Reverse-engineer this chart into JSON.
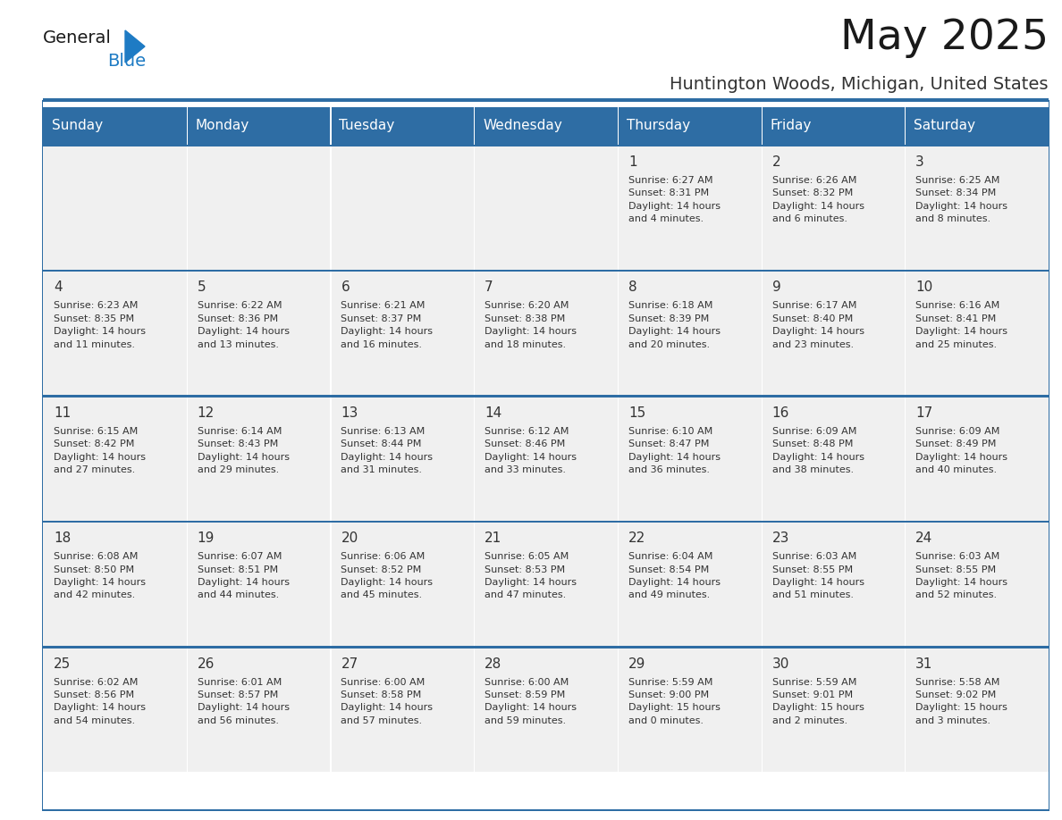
{
  "title": "May 2025",
  "subtitle": "Huntington Woods, Michigan, United States",
  "days_of_week": [
    "Sunday",
    "Monday",
    "Tuesday",
    "Wednesday",
    "Thursday",
    "Friday",
    "Saturday"
  ],
  "header_bg": "#2E6DA4",
  "header_text": "#FFFFFF",
  "cell_bg": "#F0F0F0",
  "cell_text": "#333333",
  "grid_line_color": "#2E6DA4",
  "title_color": "#1A1A1A",
  "subtitle_color": "#333333",
  "logo_general_color": "#1A1A1A",
  "logo_blue_color": "#1E7BC4",
  "fig_width": 11.88,
  "fig_height": 9.18,
  "weeks": [
    {
      "days": [
        {
          "day": null,
          "info": null
        },
        {
          "day": null,
          "info": null
        },
        {
          "day": null,
          "info": null
        },
        {
          "day": null,
          "info": null
        },
        {
          "day": 1,
          "info": "Sunrise: 6:27 AM\nSunset: 8:31 PM\nDaylight: 14 hours\nand 4 minutes."
        },
        {
          "day": 2,
          "info": "Sunrise: 6:26 AM\nSunset: 8:32 PM\nDaylight: 14 hours\nand 6 minutes."
        },
        {
          "day": 3,
          "info": "Sunrise: 6:25 AM\nSunset: 8:34 PM\nDaylight: 14 hours\nand 8 minutes."
        }
      ]
    },
    {
      "days": [
        {
          "day": 4,
          "info": "Sunrise: 6:23 AM\nSunset: 8:35 PM\nDaylight: 14 hours\nand 11 minutes."
        },
        {
          "day": 5,
          "info": "Sunrise: 6:22 AM\nSunset: 8:36 PM\nDaylight: 14 hours\nand 13 minutes."
        },
        {
          "day": 6,
          "info": "Sunrise: 6:21 AM\nSunset: 8:37 PM\nDaylight: 14 hours\nand 16 minutes."
        },
        {
          "day": 7,
          "info": "Sunrise: 6:20 AM\nSunset: 8:38 PM\nDaylight: 14 hours\nand 18 minutes."
        },
        {
          "day": 8,
          "info": "Sunrise: 6:18 AM\nSunset: 8:39 PM\nDaylight: 14 hours\nand 20 minutes."
        },
        {
          "day": 9,
          "info": "Sunrise: 6:17 AM\nSunset: 8:40 PM\nDaylight: 14 hours\nand 23 minutes."
        },
        {
          "day": 10,
          "info": "Sunrise: 6:16 AM\nSunset: 8:41 PM\nDaylight: 14 hours\nand 25 minutes."
        }
      ]
    },
    {
      "days": [
        {
          "day": 11,
          "info": "Sunrise: 6:15 AM\nSunset: 8:42 PM\nDaylight: 14 hours\nand 27 minutes."
        },
        {
          "day": 12,
          "info": "Sunrise: 6:14 AM\nSunset: 8:43 PM\nDaylight: 14 hours\nand 29 minutes."
        },
        {
          "day": 13,
          "info": "Sunrise: 6:13 AM\nSunset: 8:44 PM\nDaylight: 14 hours\nand 31 minutes."
        },
        {
          "day": 14,
          "info": "Sunrise: 6:12 AM\nSunset: 8:46 PM\nDaylight: 14 hours\nand 33 minutes."
        },
        {
          "day": 15,
          "info": "Sunrise: 6:10 AM\nSunset: 8:47 PM\nDaylight: 14 hours\nand 36 minutes."
        },
        {
          "day": 16,
          "info": "Sunrise: 6:09 AM\nSunset: 8:48 PM\nDaylight: 14 hours\nand 38 minutes."
        },
        {
          "day": 17,
          "info": "Sunrise: 6:09 AM\nSunset: 8:49 PM\nDaylight: 14 hours\nand 40 minutes."
        }
      ]
    },
    {
      "days": [
        {
          "day": 18,
          "info": "Sunrise: 6:08 AM\nSunset: 8:50 PM\nDaylight: 14 hours\nand 42 minutes."
        },
        {
          "day": 19,
          "info": "Sunrise: 6:07 AM\nSunset: 8:51 PM\nDaylight: 14 hours\nand 44 minutes."
        },
        {
          "day": 20,
          "info": "Sunrise: 6:06 AM\nSunset: 8:52 PM\nDaylight: 14 hours\nand 45 minutes."
        },
        {
          "day": 21,
          "info": "Sunrise: 6:05 AM\nSunset: 8:53 PM\nDaylight: 14 hours\nand 47 minutes."
        },
        {
          "day": 22,
          "info": "Sunrise: 6:04 AM\nSunset: 8:54 PM\nDaylight: 14 hours\nand 49 minutes."
        },
        {
          "day": 23,
          "info": "Sunrise: 6:03 AM\nSunset: 8:55 PM\nDaylight: 14 hours\nand 51 minutes."
        },
        {
          "day": 24,
          "info": "Sunrise: 6:03 AM\nSunset: 8:55 PM\nDaylight: 14 hours\nand 52 minutes."
        }
      ]
    },
    {
      "days": [
        {
          "day": 25,
          "info": "Sunrise: 6:02 AM\nSunset: 8:56 PM\nDaylight: 14 hours\nand 54 minutes."
        },
        {
          "day": 26,
          "info": "Sunrise: 6:01 AM\nSunset: 8:57 PM\nDaylight: 14 hours\nand 56 minutes."
        },
        {
          "day": 27,
          "info": "Sunrise: 6:00 AM\nSunset: 8:58 PM\nDaylight: 14 hours\nand 57 minutes."
        },
        {
          "day": 28,
          "info": "Sunrise: 6:00 AM\nSunset: 8:59 PM\nDaylight: 14 hours\nand 59 minutes."
        },
        {
          "day": 29,
          "info": "Sunrise: 5:59 AM\nSunset: 9:00 PM\nDaylight: 15 hours\nand 0 minutes."
        },
        {
          "day": 30,
          "info": "Sunrise: 5:59 AM\nSunset: 9:01 PM\nDaylight: 15 hours\nand 2 minutes."
        },
        {
          "day": 31,
          "info": "Sunrise: 5:58 AM\nSunset: 9:02 PM\nDaylight: 15 hours\nand 3 minutes."
        }
      ]
    }
  ]
}
